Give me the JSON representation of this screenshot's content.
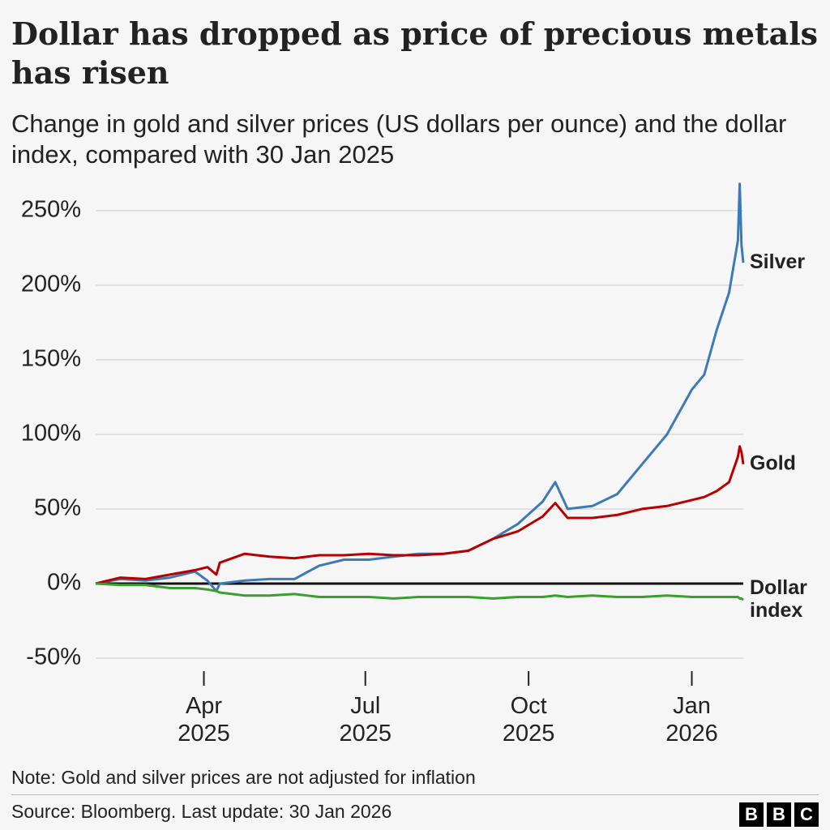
{
  "title": "Dollar has dropped as price of precious metals has risen",
  "subtitle": "Change in gold and silver prices (US dollars per ounce) and the dollar index, compared with 30 Jan 2025",
  "note": "Note: Gold and silver prices are not adjusted for inflation",
  "source": "Source: Bloomberg. Last update: 30 Jan 2026",
  "logo": [
    "B",
    "B",
    "C"
  ],
  "chart_data": {
    "type": "line",
    "x": [
      "2025-01-30",
      "2025-02-13",
      "2025-02-27",
      "2025-03-13",
      "2025-03-27",
      "2025-04-03",
      "2025-04-08",
      "2025-04-10",
      "2025-04-24",
      "2025-05-08",
      "2025-05-22",
      "2025-06-05",
      "2025-06-19",
      "2025-07-03",
      "2025-07-17",
      "2025-07-31",
      "2025-08-14",
      "2025-08-28",
      "2025-09-11",
      "2025-09-25",
      "2025-10-09",
      "2025-10-16",
      "2025-10-23",
      "2025-11-06",
      "2025-11-20",
      "2025-12-04",
      "2025-12-18",
      "2026-01-01",
      "2026-01-08",
      "2026-01-15",
      "2026-01-22",
      "2026-01-27",
      "2026-01-28",
      "2026-01-29",
      "2026-01-30"
    ],
    "series": [
      {
        "name": "Silver",
        "color": "#3d7ab8",
        "values": [
          0,
          3,
          2,
          4,
          8,
          2,
          -5,
          0,
          2,
          3,
          3,
          12,
          16,
          16,
          18,
          20,
          20,
          22,
          30,
          40,
          55,
          68,
          50,
          52,
          60,
          80,
          100,
          130,
          140,
          170,
          195,
          230,
          268,
          227,
          215
        ]
      },
      {
        "name": "Gold",
        "color": "#b80000",
        "values": [
          0,
          4,
          3,
          6,
          9,
          11,
          6,
          14,
          20,
          18,
          17,
          19,
          19,
          20,
          19,
          19,
          20,
          22,
          30,
          35,
          45,
          54,
          44,
          44,
          46,
          50,
          52,
          56,
          58,
          62,
          68,
          85,
          92,
          88,
          80
        ]
      },
      {
        "name": "Dollar index",
        "color": "#3a9f30",
        "values": [
          0,
          -1,
          -1,
          -3,
          -3,
          -4,
          -5,
          -6,
          -8,
          -8,
          -7,
          -9,
          -9,
          -9,
          -10,
          -9,
          -9,
          -9,
          -10,
          -9,
          -9,
          -8,
          -9,
          -8,
          -9,
          -9,
          -8,
          -9,
          -9,
          -9,
          -9,
          -9,
          -10,
          -10,
          -11
        ]
      }
    ],
    "xlim": [
      "2025-01-30",
      "2026-01-30"
    ],
    "xticks": [
      {
        "value": "2025-04-01",
        "label": "Apr 2025"
      },
      {
        "value": "2025-07-01",
        "label": "Jul 2025"
      },
      {
        "value": "2025-10-01",
        "label": "Oct 2025"
      },
      {
        "value": "2026-01-01",
        "label": "Jan 2026"
      }
    ],
    "ylim": [
      -50,
      270
    ],
    "yticks": [
      {
        "value": -50,
        "label": "-50%"
      },
      {
        "value": 0,
        "label": "0%"
      },
      {
        "value": 50,
        "label": "50%"
      },
      {
        "value": 100,
        "label": "100%"
      },
      {
        "value": 150,
        "label": "150%"
      },
      {
        "value": 200,
        "label": "200%"
      },
      {
        "value": 250,
        "label": "250%"
      }
    ],
    "grid": true
  }
}
